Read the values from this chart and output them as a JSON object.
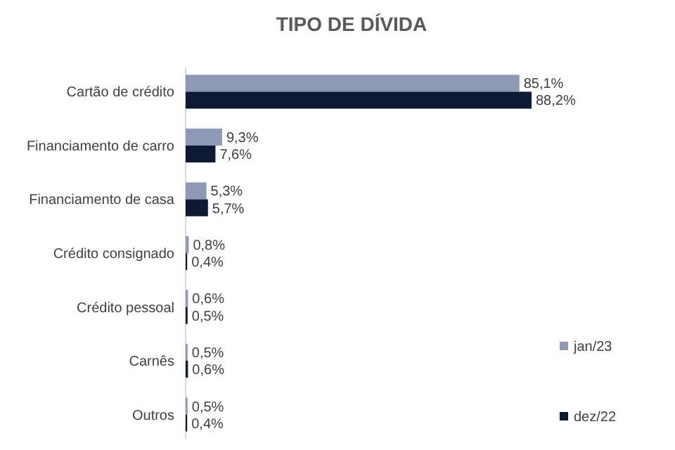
{
  "chart_data": {
    "type": "bar",
    "orientation": "horizontal",
    "title": "TIPO DE DÍVIDA",
    "categories": [
      "Cartão de crédito",
      "Financiamento de carro",
      "Financiamento de casa",
      "Crédito consignado",
      "Crédito pessoal",
      "Carnês",
      "Outros"
    ],
    "series": [
      {
        "name": "jan/23",
        "color": "#8e9ab5",
        "values": [
          85.1,
          9.3,
          5.3,
          0.8,
          0.6,
          0.5,
          0.5
        ],
        "value_labels": [
          "85,1%",
          "9,3%",
          "5,3%",
          "0,8%",
          "0,6%",
          "0,5%",
          "0,5%"
        ]
      },
      {
        "name": "dez/22",
        "color": "#0e1a33",
        "values": [
          88.2,
          7.6,
          5.7,
          0.4,
          0.5,
          0.6,
          0.4
        ],
        "value_labels": [
          "88,2%",
          "7,6%",
          "5,7%",
          "0,4%",
          "0,5%",
          "0,6%",
          "0,4%"
        ]
      }
    ],
    "legend": "right"
  }
}
